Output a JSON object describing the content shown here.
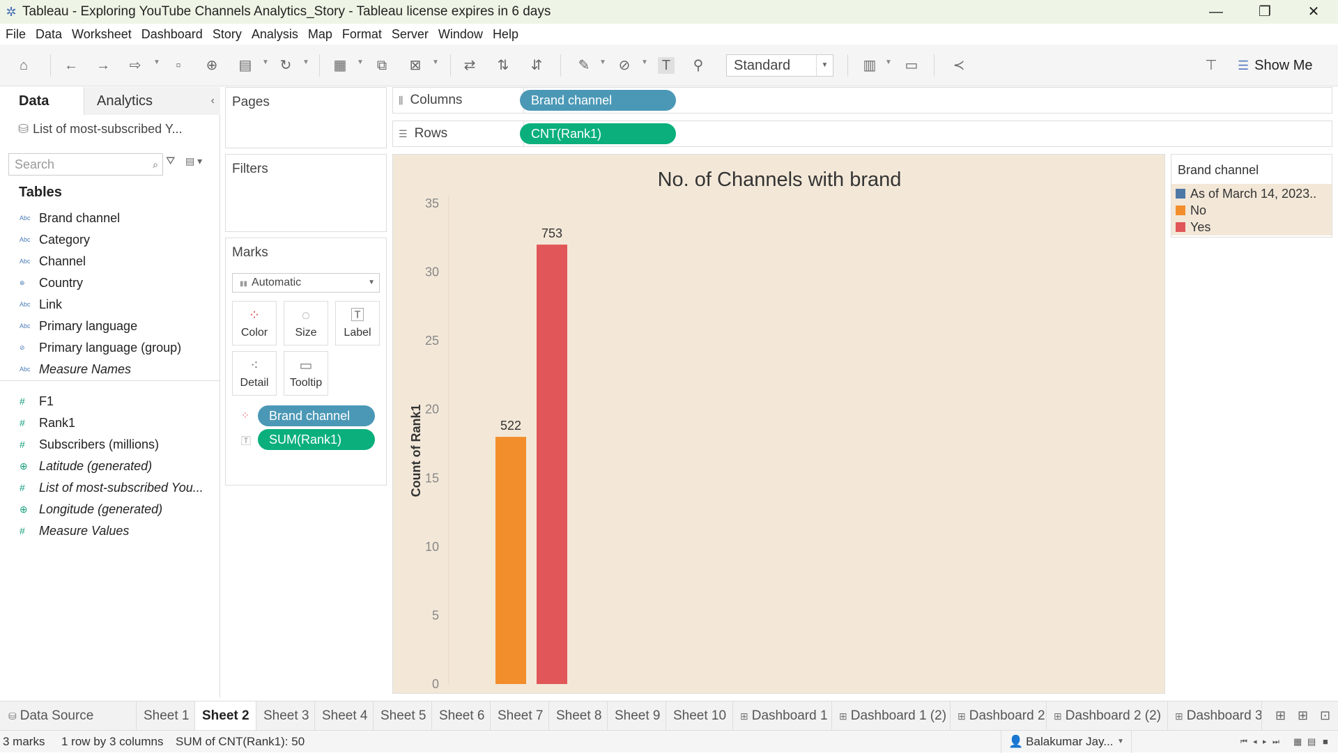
{
  "window": {
    "title": "Tableau - Exploring YouTube Channels Analytics_Story - Tableau license expires in 6 days",
    "minimize": "—",
    "restore": "❐",
    "close": "✕"
  },
  "menu": [
    "File",
    "Data",
    "Worksheet",
    "Dashboard",
    "Story",
    "Analysis",
    "Map",
    "Format",
    "Server",
    "Window",
    "Help"
  ],
  "toolbar": {
    "fit_value": "Standard",
    "show_me_label": "Show Me",
    "icons": [
      "home-icon",
      "undo-icon",
      "redo-icon",
      "replay-icon",
      "save-icon",
      "new-datasource-icon",
      "pause-icon",
      "refresh-icon",
      "new-sheet-icon",
      "duplicate-icon",
      "clear-icon",
      "swap-icon",
      "sort-asc-icon",
      "sort-desc-icon",
      "highlight-icon",
      "group-icon",
      "show-labels-icon",
      "fix-axes-icon",
      "cards-icon",
      "presentation-icon",
      "share-icon",
      "format-painter-icon"
    ]
  },
  "data_pane": {
    "tab_data": "Data",
    "tab_analytics": "Analytics",
    "datasource": "List of most-subscribed Y...",
    "search_placeholder": "Search",
    "tables_heading": "Tables",
    "dimensions": [
      {
        "type": "Abc",
        "name": "Brand channel",
        "italic": false
      },
      {
        "type": "Abc",
        "name": "Category",
        "italic": false
      },
      {
        "type": "Abc",
        "name": "Channel",
        "italic": false
      },
      {
        "type": "globe",
        "name": "Country",
        "italic": false
      },
      {
        "type": "Abc",
        "name": "Link",
        "italic": false
      },
      {
        "type": "Abc",
        "name": "Primary language",
        "italic": false
      },
      {
        "type": "clip",
        "name": "Primary language (group)",
        "italic": false
      },
      {
        "type": "Abc",
        "name": "Measure Names",
        "italic": true
      }
    ],
    "measures": [
      {
        "type": "#",
        "name": "F1",
        "italic": false
      },
      {
        "type": "#",
        "name": "Rank1",
        "italic": false
      },
      {
        "type": "#",
        "name": "Subscribers (millions)",
        "italic": false
      },
      {
        "type": "globe",
        "name": "Latitude (generated)",
        "italic": true
      },
      {
        "type": "#",
        "name": "List of most-subscribed You...",
        "italic": true
      },
      {
        "type": "globe",
        "name": "Longitude (generated)",
        "italic": true
      },
      {
        "type": "#",
        "name": "Measure Values",
        "italic": true
      }
    ]
  },
  "cards": {
    "pages": "Pages",
    "filters": "Filters",
    "marks": "Marks",
    "mark_type": "Automatic",
    "mark_buttons": [
      "Color",
      "Size",
      "Label",
      "Detail",
      "Tooltip"
    ],
    "mark_pills": [
      {
        "label": "Brand channel",
        "kind": "color"
      },
      {
        "label": "SUM(Rank1)",
        "kind": "label"
      }
    ]
  },
  "shelves": {
    "columns_label": "Columns",
    "columns_pill": "Brand channel",
    "rows_label": "Rows",
    "rows_pill": "CNT(Rank1)"
  },
  "colors": {
    "dimension_pill": "#4b98b6",
    "measure_pill": "#0aaf7c",
    "view_bg": "#f3e8d8",
    "series": {
      "As of March 14, 2023..": "#4e79a7",
      "No": "#f28e2b",
      "Yes": "#e15759"
    }
  },
  "chart_data": {
    "type": "bar",
    "title": "No. of Channels with brand",
    "ylabel": "Count of Rank1",
    "xlabel": "",
    "ylim": [
      0,
      35
    ],
    "yticks": [
      0,
      5,
      10,
      15,
      20,
      25,
      30,
      35
    ],
    "categories": [
      "No",
      "Yes"
    ],
    "values": [
      18,
      32
    ],
    "data_labels": [
      "522",
      "753"
    ],
    "colors": [
      "#f28e2b",
      "#e15759"
    ]
  },
  "legend": {
    "title": "Brand channel",
    "items": [
      {
        "label": "As of March 14, 2023..",
        "color": "#4e79a7"
      },
      {
        "label": "No",
        "color": "#f28e2b"
      },
      {
        "label": "Yes",
        "color": "#e15759"
      }
    ]
  },
  "sheet_tabs": {
    "datasource": "Data Source",
    "tabs": [
      {
        "label": "Sheet 1",
        "dashboard": false
      },
      {
        "label": "Sheet 2",
        "dashboard": false,
        "active": true
      },
      {
        "label": "Sheet 3",
        "dashboard": false
      },
      {
        "label": "Sheet 4",
        "dashboard": false
      },
      {
        "label": "Sheet 5",
        "dashboard": false
      },
      {
        "label": "Sheet 6",
        "dashboard": false
      },
      {
        "label": "Sheet 7",
        "dashboard": false
      },
      {
        "label": "Sheet 8",
        "dashboard": false
      },
      {
        "label": "Sheet 9",
        "dashboard": false
      },
      {
        "label": "Sheet 10",
        "dashboard": false
      },
      {
        "label": "Dashboard 1",
        "dashboard": true
      },
      {
        "label": "Dashboard 1 (2)",
        "dashboard": true
      },
      {
        "label": "Dashboard 2",
        "dashboard": true
      },
      {
        "label": "Dashboard 2 (2)",
        "dashboard": true
      },
      {
        "label": "Dashboard 3",
        "dashboard": true
      }
    ]
  },
  "status": {
    "marks": "3 marks",
    "dims": "1 row by 3 columns",
    "sum": "SUM of CNT(Rank1): 50",
    "user": "Balakumar Jay..."
  }
}
